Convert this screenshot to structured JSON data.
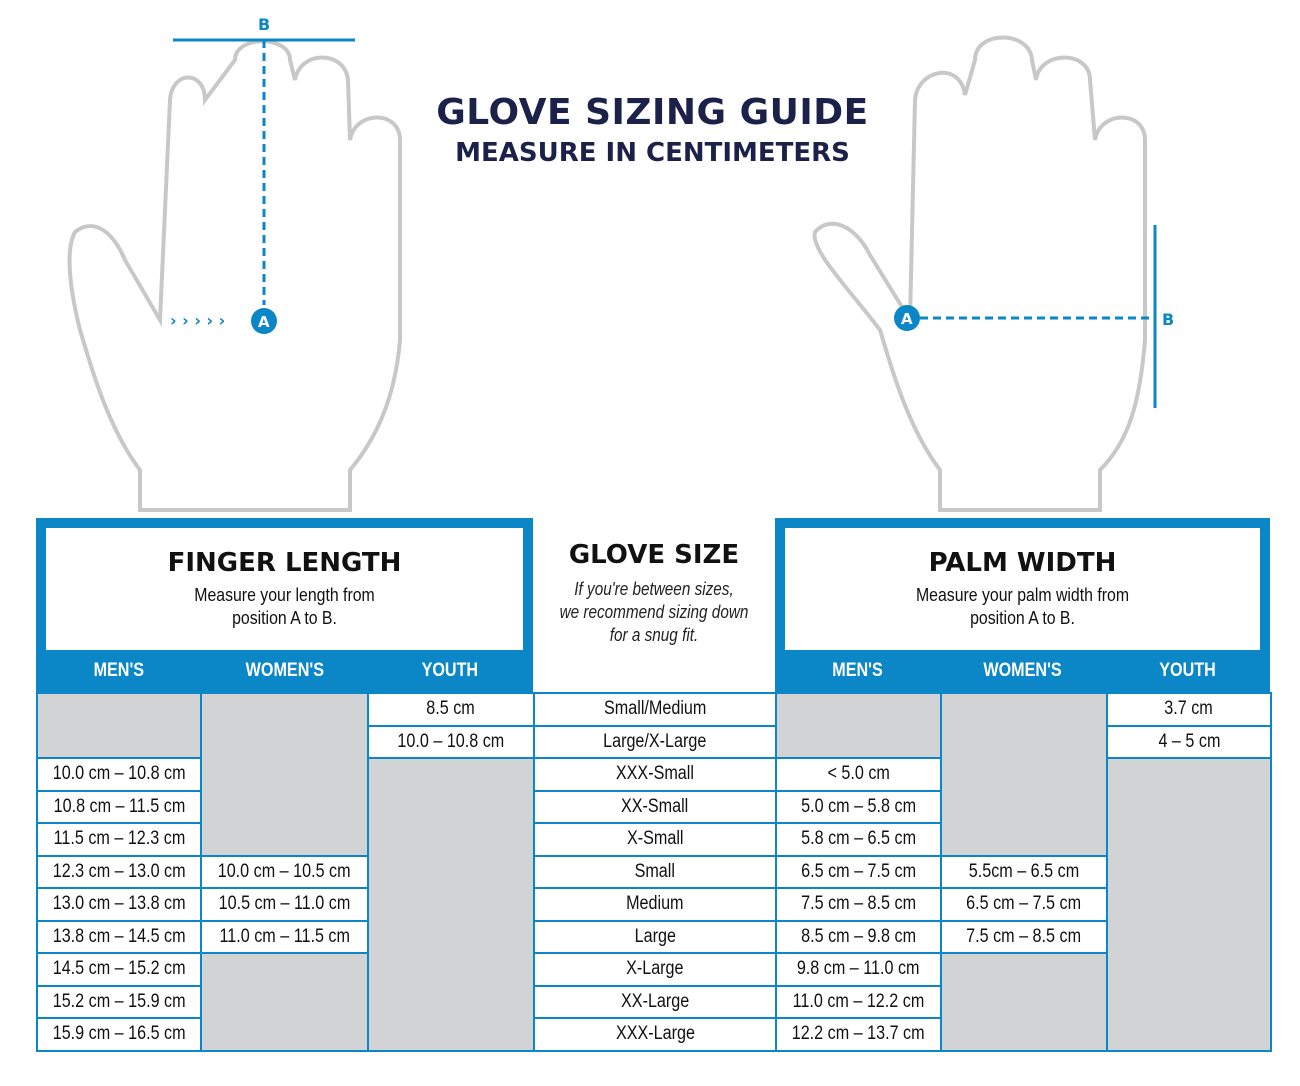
{
  "title": "GLOVE SIZING GUIDE",
  "subtitle": "MEASURE IN CENTIMETERS",
  "diagram_labels": {
    "a": "A",
    "b": "B"
  },
  "colors": {
    "accent": "#0b86c6",
    "title": "#1b2148",
    "empty_cell": "#d1d3d4"
  },
  "finger": {
    "heading": "FINGER LENGTH",
    "desc1": "Measure your length from",
    "desc2": "position A to B.",
    "cols": [
      "MEN'S",
      "WOMEN'S",
      "YOUTH"
    ]
  },
  "palm": {
    "heading": "PALM WIDTH",
    "desc1": "Measure your palm width from",
    "desc2": "position A to B.",
    "cols": [
      "MEN'S",
      "WOMEN'S",
      "YOUTH"
    ]
  },
  "glove": {
    "heading": "GLOVE SIZE",
    "note1": "If you're between sizes,",
    "note2": "we recommend sizing down",
    "note3": "for a snug fit."
  },
  "sizes": [
    "Small/Medium",
    "Large/X-Large",
    "XXX-Small",
    "XX-Small",
    "X-Small",
    "Small",
    "Medium",
    "Large",
    "X-Large",
    "XX-Large",
    "XXX-Large"
  ],
  "finger_men": [
    "10.0 cm – 10.8 cm",
    "10.8 cm – 11.5 cm",
    "11.5 cm – 12.3 cm",
    "12.3 cm – 13.0 cm",
    "13.0 cm – 13.8 cm",
    "13.8 cm – 14.5 cm",
    "14.5 cm – 15.2 cm",
    "15.2 cm – 15.9 cm",
    "15.9 cm – 16.5 cm"
  ],
  "finger_women": [
    "10.0 cm – 10.5 cm",
    "10.5 cm – 11.0 cm",
    "11.0 cm – 11.5 cm"
  ],
  "finger_youth": [
    "8.5 cm",
    "10.0 – 10.8 cm"
  ],
  "palm_men": [
    "< 5.0 cm",
    "5.0 cm – 5.8 cm",
    "5.8 cm – 6.5 cm",
    "6.5 cm – 7.5 cm",
    "7.5 cm – 8.5 cm",
    "8.5 cm – 9.8 cm",
    "9.8 cm – 11.0 cm",
    "11.0 cm – 12.2 cm",
    "12.2 cm – 13.7 cm"
  ],
  "palm_women": [
    "5.5cm – 6.5 cm",
    "6.5 cm – 7.5 cm",
    "7.5 cm – 8.5 cm"
  ],
  "palm_youth": [
    "3.7 cm",
    "4 – 5 cm"
  ]
}
